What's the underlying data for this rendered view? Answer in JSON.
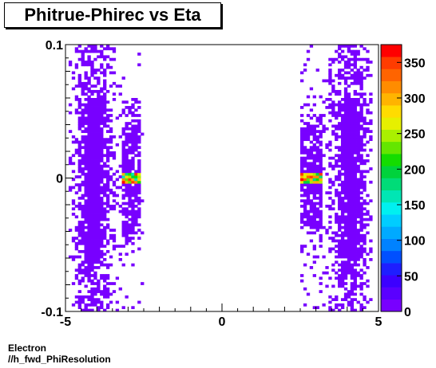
{
  "title": "Phitrue-Phirec vs Eta",
  "footer": {
    "line1": "Electron",
    "line2": "//h_fwd_PhiResolution"
  },
  "chart_data": {
    "type": "heatmap",
    "title": "Phitrue-Phirec vs Eta",
    "xlabel": "",
    "ylabel": "",
    "xlim": [
      -5,
      5
    ],
    "ylim": [
      -0.1,
      0.1
    ],
    "x_ticks": [
      "-5",
      "0",
      "5"
    ],
    "y_ticks": [
      "-0.1",
      "0",
      "0.1"
    ],
    "z_range": [
      0,
      375
    ],
    "colorbar_ticks": [
      "0",
      "50",
      "100",
      "150",
      "200",
      "250",
      "300",
      "350"
    ],
    "colorbar_palette": [
      "#7800ff",
      "#5a00ff",
      "#3c00ff",
      "#1e1eff",
      "#0050ff",
      "#0082ff",
      "#00aaff",
      "#00cdff",
      "#00f0f0",
      "#00e6b4",
      "#00dc78",
      "#00d23c",
      "#14dc00",
      "#64e600",
      "#aaf000",
      "#e6f000",
      "#ffdc00",
      "#ffb400",
      "#ff8c00",
      "#ff6400",
      "#ff3c00",
      "#ff0000"
    ],
    "regions": [
      {
        "name": "left band",
        "x_range": [
          -4.85,
          -2.55
        ],
        "y_range": [
          -0.1,
          0.1
        ],
        "z_level": "low (~5-20)"
      },
      {
        "name": "left core",
        "x_range": [
          -3.2,
          -2.6
        ],
        "y_range": [
          -0.003,
          0.003
        ],
        "z_level": "high (~250-375)"
      },
      {
        "name": "right band",
        "x_range": [
          2.55,
          4.85
        ],
        "y_range": [
          -0.1,
          0.1
        ],
        "z_level": "low (~5-20)"
      },
      {
        "name": "right core",
        "x_range": [
          2.6,
          3.2
        ],
        "y_range": [
          -0.003,
          0.003
        ],
        "z_level": "high (~250-375)"
      }
    ]
  }
}
